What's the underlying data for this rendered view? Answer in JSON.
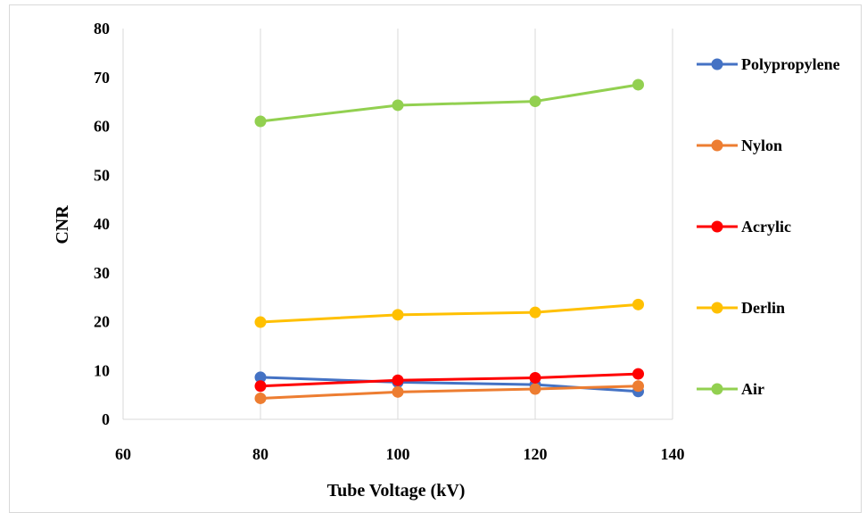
{
  "chart_data": {
    "type": "line",
    "xlabel": "Tube Voltage (kV)",
    "ylabel": "CNR",
    "xlim": [
      60,
      140
    ],
    "ylim": [
      0,
      80
    ],
    "x_ticks": [
      60,
      80,
      100,
      120,
      140
    ],
    "y_ticks": [
      0,
      10,
      20,
      30,
      40,
      50,
      60,
      70,
      80
    ],
    "grid": "vertical",
    "legend_position": "right",
    "x": [
      80,
      100,
      120,
      135
    ],
    "series": [
      {
        "name": "Polypropylene",
        "color": "#4472C4",
        "values": [
          8.6,
          7.6,
          7.1,
          5.7
        ]
      },
      {
        "name": "Nylon",
        "color": "#ED7D31",
        "values": [
          4.3,
          5.6,
          6.2,
          6.8
        ]
      },
      {
        "name": "Acrylic",
        "color": "#FF0000",
        "values": [
          6.8,
          8.0,
          8.5,
          9.3
        ]
      },
      {
        "name": "Derlin",
        "color": "#FFC000",
        "values": [
          19.9,
          21.4,
          21.9,
          23.5
        ]
      },
      {
        "name": "Air",
        "color": "#92D050",
        "values": [
          61.0,
          64.3,
          65.1,
          68.5
        ]
      }
    ]
  }
}
